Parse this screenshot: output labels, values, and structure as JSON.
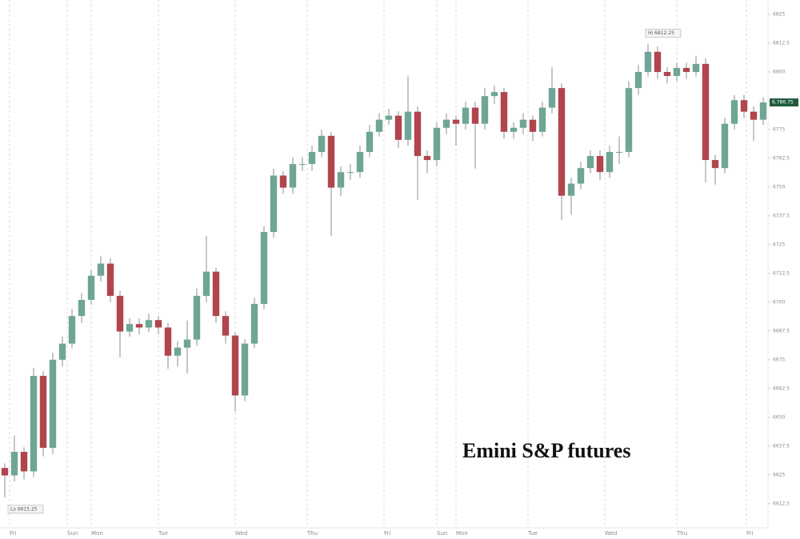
{
  "chart_data": {
    "type": "candlestick",
    "title": "Emini S&P futures",
    "up_color": "#6fa596",
    "down_color": "#b0454b",
    "wick_color": "#8a8f8f",
    "xgrid": true,
    "ygrid": false,
    "xlim": [
      0,
      80
    ],
    "xticks": [
      {
        "value": 1,
        "label": "Fri"
      },
      {
        "value": 7,
        "label": "Sun"
      },
      {
        "value": 9.5,
        "label": "Mon"
      },
      {
        "value": 16.5,
        "label": "Tue"
      },
      {
        "value": 24.5,
        "label": "Wed"
      },
      {
        "value": 32,
        "label": "Thu"
      },
      {
        "value": 40,
        "label": "Fri"
      },
      {
        "value": 45.5,
        "label": "Sun"
      },
      {
        "value": 47.5,
        "label": "Mon"
      },
      {
        "value": 55,
        "label": "Tue"
      },
      {
        "value": 63,
        "label": "Wed"
      },
      {
        "value": 70.5,
        "label": "Thu"
      },
      {
        "value": 77.75,
        "label": "Fri"
      }
    ],
    "ylim": [
      6602,
      6831.25
    ],
    "yticks": [
      6825,
      6812.5,
      6800,
      6787.5,
      6775,
      6762.5,
      6750,
      6737.5,
      6725,
      6712.5,
      6700,
      6687.5,
      6675,
      6662.5,
      6650,
      6637.5,
      6625,
      6612.5
    ],
    "high_label": "Hi 6812.25",
    "low_label": "Lo 6615.25",
    "last_label": "6,786.75",
    "open": [
      6628,
      6624.75,
      6635,
      6626.5,
      6668,
      6636.75,
      6675,
      6682,
      6694,
      6701,
      6711.5,
      6716.75,
      6702.75,
      6687.25,
      6690.5,
      6689,
      6692.25,
      6689,
      6676.75,
      6680.25,
      6683.75,
      6702.75,
      6713.25,
      6694,
      6685.5,
      6659.5,
      6682,
      6699.25,
      6730.5,
      6755,
      6749.75,
      6760,
      6760,
      6765.25,
      6772.25,
      6749.75,
      6756.5,
      6756.5,
      6765.25,
      6774,
      6779.25,
      6781,
      6770.5,
      6782.75,
      6763.5,
      6761.75,
      6775.75,
      6779.25,
      6777.5,
      6784.5,
      6777.5,
      6789.5,
      6791.25,
      6774,
      6775.75,
      6779.25,
      6774,
      6784.5,
      6793,
      6746.25,
      6751.5,
      6758.25,
      6763.5,
      6756.5,
      6765.25,
      6765.25,
      6793,
      6800,
      6808.75,
      6800,
      6798.25,
      6801.75,
      6800,
      6803.5,
      6761.75,
      6758.25,
      6777.5,
      6787.75,
      6782.75,
      6779.25
    ],
    "high": [
      6630,
      6642,
      6637,
      6671.5,
      6670,
      6678,
      6685,
      6697,
      6704,
      6714,
      6720,
      6719,
      6705,
      6693,
      6693,
      6695,
      6694,
      6691,
      6683,
      6692,
      6706,
      6728.75,
      6715,
      6696,
      6687,
      6684,
      6702,
      6733,
      6758,
      6757,
      6763,
      6763,
      6768,
      6775,
      6774,
      6759,
      6760,
      6768,
      6777,
      6782,
      6784,
      6783,
      6798,
      6785,
      6766,
      6778,
      6782,
      6781,
      6787,
      6787,
      6793,
      6794,
      6793,
      6778,
      6782,
      6781,
      6787,
      6802,
      6795,
      6754,
      6761,
      6766,
      6766,
      6768,
      6772,
      6796,
      6803,
      6812.25,
      6811,
      6802,
      6804,
      6804,
      6807,
      6806,
      6764,
      6780,
      6790,
      6790,
      6785,
      6789
    ],
    "low": [
      6615.25,
      6622,
      6623,
      6624,
      6633,
      6634,
      6672,
      6680,
      6691,
      6699,
      6709,
      6700,
      6676,
      6685,
      6686,
      6687,
      6686,
      6671,
      6672,
      6669,
      6681,
      6700,
      6691,
      6682,
      6652.5,
      6657,
      6680,
      6697,
      6728,
      6747,
      6747,
      6757,
      6757,
      6763,
      6728.75,
      6746,
      6753,
      6754,
      6763,
      6772,
      6777,
      6767,
      6768,
      6744.5,
      6756,
      6759,
      6773,
      6768,
      6775,
      6758,
      6775,
      6786,
      6771,
      6771,
      6773,
      6770,
      6772,
      6782,
      6735.75,
      6738,
      6749,
      6756,
      6753,
      6754,
      6760,
      6763,
      6790,
      6798,
      6797,
      6795,
      6796,
      6797,
      6798,
      6752,
      6751,
      6756,
      6775,
      6780,
      6770,
      6777
    ],
    "close": [
      6624.75,
      6635,
      6626.5,
      6668,
      6636.75,
      6675,
      6682,
      6694,
      6701,
      6711.5,
      6716.75,
      6702.75,
      6687.25,
      6690.5,
      6689,
      6692.25,
      6689,
      6676.75,
      6680.25,
      6683.75,
      6702.75,
      6713.25,
      6694,
      6685.5,
      6659.5,
      6682,
      6699.25,
      6730.5,
      6755,
      6749.75,
      6760,
      6760,
      6765.25,
      6772.25,
      6749.75,
      6756.5,
      6756.5,
      6765.25,
      6774,
      6779.25,
      6781,
      6770.5,
      6782.75,
      6763.5,
      6761.75,
      6775.75,
      6779.25,
      6777.5,
      6784.5,
      6777.5,
      6789.5,
      6791.25,
      6774,
      6775.75,
      6779.25,
      6774,
      6784.5,
      6793,
      6746.25,
      6751.5,
      6758.25,
      6763.5,
      6756.5,
      6765.25,
      6765.25,
      6793,
      6800,
      6808.75,
      6800,
      6798.25,
      6801.75,
      6800,
      6803.5,
      6761.75,
      6758.25,
      6777.5,
      6787.75,
      6782.75,
      6779.25,
      6786.75
    ]
  }
}
